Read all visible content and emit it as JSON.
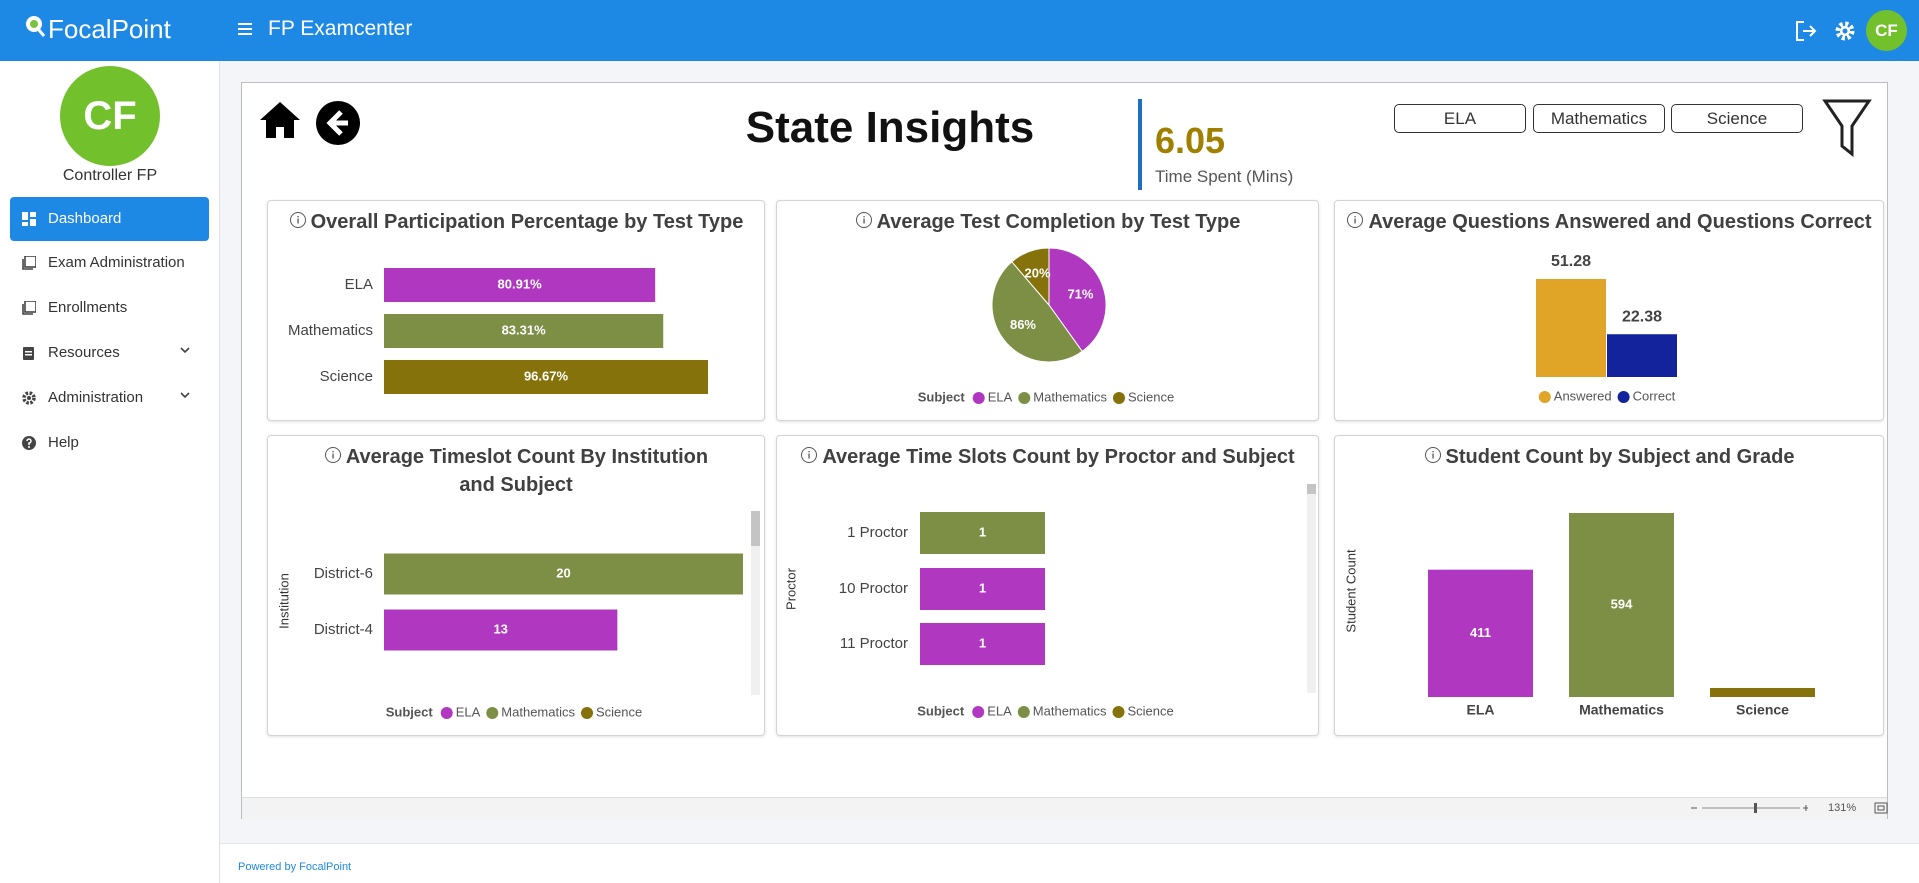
{
  "header": {
    "logo": "FocalPoint",
    "app_title": "FP Examcenter",
    "avatar": "CF"
  },
  "sidebar": {
    "avatar": "CF",
    "user": "Controller FP",
    "nav": [
      "Dashboard",
      "Exam Administration",
      "Enrollments",
      "Resources",
      "Administration",
      "Help"
    ]
  },
  "report": {
    "title": "State Insights",
    "kpi_value": 6.05,
    "kpi_label": "Time Spent (Mins)",
    "filters": [
      "ELA",
      "Mathematics",
      "Science"
    ],
    "zoom": "131%"
  },
  "footer": "Powered by FocalPoint",
  "chart_data": [
    {
      "type": "hbar",
      "title": "Overall Participation Percentage by Test Type",
      "categories": [
        "ELA",
        "Mathematics",
        "Science"
      ],
      "values": [
        80.91,
        83.31,
        96.67
      ],
      "value_labels": [
        "80.91%",
        "83.31%",
        "96.67%"
      ],
      "colors": [
        "#b038c0",
        "#7d8e45",
        "#85720a"
      ]
    },
    {
      "type": "pie",
      "title": "Average Test Completion by Test Type",
      "categories": [
        "ELA",
        "Mathematics",
        "Science"
      ],
      "values": [
        71,
        86,
        20
      ],
      "value_labels": [
        "71%",
        "86%",
        "20%"
      ],
      "colors": [
        "#b038c0",
        "#7d8e45",
        "#85720a"
      ],
      "legend_title": "Subject"
    },
    {
      "type": "column",
      "title": "Average Questions Answered and Questions Correct",
      "categories": [
        "Answered",
        "Correct"
      ],
      "values": [
        51.28,
        22.38
      ],
      "colors": [
        "#e0a526",
        "#13239c"
      ],
      "data_labels": "outside",
      "legend": true
    },
    {
      "type": "hbar",
      "title": "Average Timeslot Count By Institution and Subject",
      "y_label": "Institution",
      "categories": [
        "District-6",
        "District-4"
      ],
      "values": [
        20,
        13
      ],
      "colors": [
        "#7d8e45",
        "#b038c0"
      ],
      "legend_title": "Subject",
      "legend": [
        {
          "name": "ELA",
          "color": "#b038c0"
        },
        {
          "name": "Mathematics",
          "color": "#7d8e45"
        },
        {
          "name": "Science",
          "color": "#85720a"
        }
      ]
    },
    {
      "type": "hbar",
      "title": "Average Time Slots Count by Proctor and Subject",
      "y_label": "Proctor",
      "categories": [
        "1 Proctor",
        "10 Proctor",
        "11 Proctor"
      ],
      "values": [
        1,
        1,
        1
      ],
      "colors": [
        "#7d8e45",
        "#b038c0",
        "#b038c0"
      ],
      "legend_title": "Subject",
      "legend": [
        {
          "name": "ELA",
          "color": "#b038c0"
        },
        {
          "name": "Mathematics",
          "color": "#7d8e45"
        },
        {
          "name": "Science",
          "color": "#85720a"
        }
      ]
    },
    {
      "type": "column",
      "title": "Student Count by Subject and Grade",
      "y_label": "Student Count",
      "categories": [
        "ELA",
        "Mathematics",
        "Science"
      ],
      "values": [
        411,
        594,
        29
      ],
      "colors": [
        "#b038c0",
        "#7d8e45",
        "#85720a"
      ],
      "data_labels": "inside",
      "legend": false
    }
  ]
}
